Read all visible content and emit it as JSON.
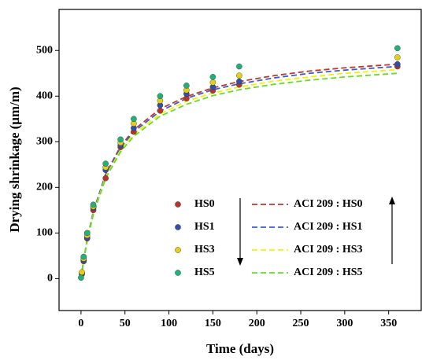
{
  "chart_data": {
    "type": "scatter",
    "xlabel": "Time (days)",
    "ylabel": "Drying shrinkage (μm/m)",
    "xlim": [
      -25,
      387
    ],
    "ylim": [
      -70,
      590
    ],
    "xticks": [
      0,
      50,
      100,
      150,
      200,
      250,
      300,
      350
    ],
    "yticks": [
      0,
      100,
      200,
      300,
      400,
      500
    ],
    "series": [
      {
        "name": "HS0",
        "type": "scatter",
        "color": "#b8352a",
        "x": [
          1,
          3,
          7,
          14,
          28,
          45,
          60,
          90,
          120,
          150,
          180,
          360
        ],
        "values": [
          12,
          38,
          88,
          150,
          220,
          288,
          322,
          368,
          395,
          412,
          425,
          465
        ]
      },
      {
        "name": "HS1",
        "type": "scatter",
        "color": "#2f4fa8",
        "x": [
          1,
          3,
          7,
          14,
          28,
          45,
          60,
          90,
          120,
          150,
          180,
          360
        ],
        "values": [
          10,
          40,
          90,
          155,
          238,
          292,
          330,
          380,
          405,
          420,
          432,
          470
        ]
      },
      {
        "name": "HS3",
        "type": "scatter",
        "color": "#e6cf12",
        "x": [
          1,
          3,
          7,
          14,
          28,
          45,
          60,
          90,
          120,
          150,
          180,
          360
        ],
        "values": [
          14,
          44,
          95,
          158,
          244,
          298,
          340,
          390,
          413,
          430,
          445,
          485
        ]
      },
      {
        "name": "HS5",
        "type": "scatter",
        "color": "#22b07a",
        "x": [
          0,
          3,
          7,
          14,
          28,
          45,
          60,
          90,
          120,
          150,
          180,
          360
        ],
        "values": [
          2,
          48,
          100,
          162,
          252,
          305,
          350,
          400,
          423,
          442,
          465,
          505
        ]
      },
      {
        "name": "ACI 209 : HS0",
        "type": "line",
        "color": "#c0392b",
        "x": [
          0,
          3,
          7,
          14,
          28,
          45,
          60,
          90,
          120,
          150,
          180,
          220,
          260,
          300,
          360
        ],
        "values": [
          0,
          41,
          86,
          147,
          229,
          290,
          326,
          372,
          399,
          418,
          432,
          445,
          455,
          462,
          470
        ]
      },
      {
        "name": "ACI 209 : HS1",
        "type": "line",
        "color": "#3a5fcd",
        "x": [
          0,
          3,
          7,
          14,
          28,
          45,
          60,
          90,
          120,
          150,
          180,
          220,
          260,
          300,
          360
        ],
        "values": [
          0,
          40,
          85,
          146,
          227,
          287,
          322,
          367,
          395,
          414,
          427,
          440,
          450,
          457,
          465
        ]
      },
      {
        "name": "ACI 209 : HS3",
        "type": "line",
        "color": "#f2f200",
        "x": [
          0,
          3,
          7,
          14,
          28,
          45,
          60,
          90,
          120,
          150,
          180,
          220,
          260,
          300,
          360
        ],
        "values": [
          0,
          40,
          84,
          143,
          223,
          282,
          317,
          361,
          389,
          407,
          420,
          433,
          442,
          450,
          458
        ]
      },
      {
        "name": "ACI 209 : HS5",
        "type": "line",
        "color": "#66dd22",
        "x": [
          0,
          3,
          7,
          14,
          28,
          45,
          60,
          90,
          120,
          150,
          180,
          220,
          260,
          300,
          360
        ],
        "values": [
          0,
          39,
          82,
          141,
          220,
          278,
          312,
          356,
          382,
          401,
          414,
          426,
          435,
          442,
          450
        ]
      }
    ]
  }
}
